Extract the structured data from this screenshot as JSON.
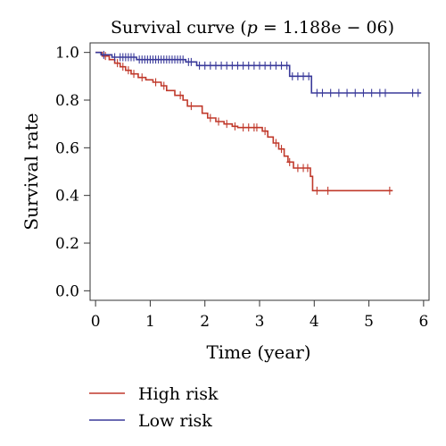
{
  "chart_data": {
    "type": "line",
    "title_prefix": "Survival curve (",
    "title_p": "p",
    "title_suffix": " = 1.188e − 06)",
    "xlabel": "Time (year)",
    "ylabel": "Survival rate",
    "xlim": [
      -0.1,
      6.1
    ],
    "ylim": [
      -0.04,
      1.04
    ],
    "xticks": [
      0,
      1,
      2,
      3,
      4,
      5,
      6
    ],
    "yticks": [
      0.0,
      0.2,
      0.4,
      0.6,
      0.8,
      1.0
    ],
    "ytick_labels": [
      "0.0",
      "0.2",
      "0.4",
      "0.6",
      "0.8",
      "1.0"
    ],
    "grid": false,
    "legend_position": "bottom-left",
    "series": [
      {
        "name": "High risk",
        "color": "#c0392b",
        "steps": [
          [
            0,
            1.0
          ],
          [
            0.12,
            0.985
          ],
          [
            0.25,
            0.97
          ],
          [
            0.35,
            0.955
          ],
          [
            0.45,
            0.94
          ],
          [
            0.55,
            0.925
          ],
          [
            0.65,
            0.91
          ],
          [
            0.78,
            0.895
          ],
          [
            0.92,
            0.885
          ],
          [
            1.05,
            0.875
          ],
          [
            1.2,
            0.86
          ],
          [
            1.3,
            0.84
          ],
          [
            1.45,
            0.82
          ],
          [
            1.6,
            0.8
          ],
          [
            1.68,
            0.775
          ],
          [
            1.95,
            0.745
          ],
          [
            2.05,
            0.725
          ],
          [
            2.2,
            0.71
          ],
          [
            2.35,
            0.7
          ],
          [
            2.5,
            0.69
          ],
          [
            2.6,
            0.685
          ],
          [
            3.05,
            0.67
          ],
          [
            3.15,
            0.645
          ],
          [
            3.25,
            0.62
          ],
          [
            3.35,
            0.595
          ],
          [
            3.45,
            0.565
          ],
          [
            3.52,
            0.54
          ],
          [
            3.62,
            0.515
          ],
          [
            3.93,
            0.48
          ],
          [
            3.97,
            0.42
          ],
          [
            5.43,
            0.42
          ]
        ],
        "censors": [
          [
            0.18,
            0.985
          ],
          [
            0.4,
            0.955
          ],
          [
            0.5,
            0.94
          ],
          [
            0.6,
            0.925
          ],
          [
            0.7,
            0.91
          ],
          [
            0.85,
            0.895
          ],
          [
            1.1,
            0.875
          ],
          [
            1.25,
            0.86
          ],
          [
            1.55,
            0.82
          ],
          [
            1.75,
            0.775
          ],
          [
            2.1,
            0.725
          ],
          [
            2.25,
            0.71
          ],
          [
            2.4,
            0.7
          ],
          [
            2.55,
            0.69
          ],
          [
            2.7,
            0.685
          ],
          [
            2.8,
            0.685
          ],
          [
            2.9,
            0.685
          ],
          [
            2.95,
            0.685
          ],
          [
            3.1,
            0.67
          ],
          [
            3.3,
            0.62
          ],
          [
            3.4,
            0.595
          ],
          [
            3.55,
            0.54
          ],
          [
            3.7,
            0.515
          ],
          [
            3.8,
            0.515
          ],
          [
            3.88,
            0.515
          ],
          [
            4.05,
            0.42
          ],
          [
            4.25,
            0.42
          ],
          [
            5.38,
            0.42
          ]
        ]
      },
      {
        "name": "Low risk",
        "color": "#3a3a9a",
        "steps": [
          [
            0,
            1.0
          ],
          [
            0.1,
            0.99
          ],
          [
            0.3,
            0.98
          ],
          [
            0.75,
            0.97
          ],
          [
            1.65,
            0.96
          ],
          [
            1.85,
            0.945
          ],
          [
            3.55,
            0.9
          ],
          [
            3.95,
            0.83
          ],
          [
            5.95,
            0.83
          ]
        ],
        "censors": [
          [
            0.15,
            0.99
          ],
          [
            0.35,
            0.98
          ],
          [
            0.45,
            0.98
          ],
          [
            0.5,
            0.98
          ],
          [
            0.55,
            0.98
          ],
          [
            0.6,
            0.98
          ],
          [
            0.65,
            0.98
          ],
          [
            0.7,
            0.98
          ],
          [
            0.8,
            0.97
          ],
          [
            0.85,
            0.97
          ],
          [
            0.9,
            0.97
          ],
          [
            0.95,
            0.97
          ],
          [
            1.0,
            0.97
          ],
          [
            1.05,
            0.97
          ],
          [
            1.1,
            0.97
          ],
          [
            1.15,
            0.97
          ],
          [
            1.2,
            0.97
          ],
          [
            1.25,
            0.97
          ],
          [
            1.3,
            0.97
          ],
          [
            1.35,
            0.97
          ],
          [
            1.4,
            0.97
          ],
          [
            1.45,
            0.97
          ],
          [
            1.5,
            0.97
          ],
          [
            1.55,
            0.97
          ],
          [
            1.6,
            0.97
          ],
          [
            1.7,
            0.96
          ],
          [
            1.75,
            0.96
          ],
          [
            1.9,
            0.945
          ],
          [
            2.0,
            0.945
          ],
          [
            2.1,
            0.945
          ],
          [
            2.2,
            0.945
          ],
          [
            2.3,
            0.945
          ],
          [
            2.4,
            0.945
          ],
          [
            2.5,
            0.945
          ],
          [
            2.6,
            0.945
          ],
          [
            2.7,
            0.945
          ],
          [
            2.8,
            0.945
          ],
          [
            2.9,
            0.945
          ],
          [
            3.0,
            0.945
          ],
          [
            3.1,
            0.945
          ],
          [
            3.2,
            0.945
          ],
          [
            3.3,
            0.945
          ],
          [
            3.4,
            0.945
          ],
          [
            3.5,
            0.945
          ],
          [
            3.6,
            0.9
          ],
          [
            3.7,
            0.9
          ],
          [
            3.8,
            0.9
          ],
          [
            3.9,
            0.9
          ],
          [
            4.05,
            0.83
          ],
          [
            4.15,
            0.83
          ],
          [
            4.3,
            0.83
          ],
          [
            4.45,
            0.83
          ],
          [
            4.6,
            0.83
          ],
          [
            4.75,
            0.83
          ],
          [
            4.9,
            0.83
          ],
          [
            5.05,
            0.83
          ],
          [
            5.2,
            0.83
          ],
          [
            5.3,
            0.83
          ],
          [
            5.8,
            0.83
          ],
          [
            5.9,
            0.83
          ]
        ]
      }
    ]
  }
}
